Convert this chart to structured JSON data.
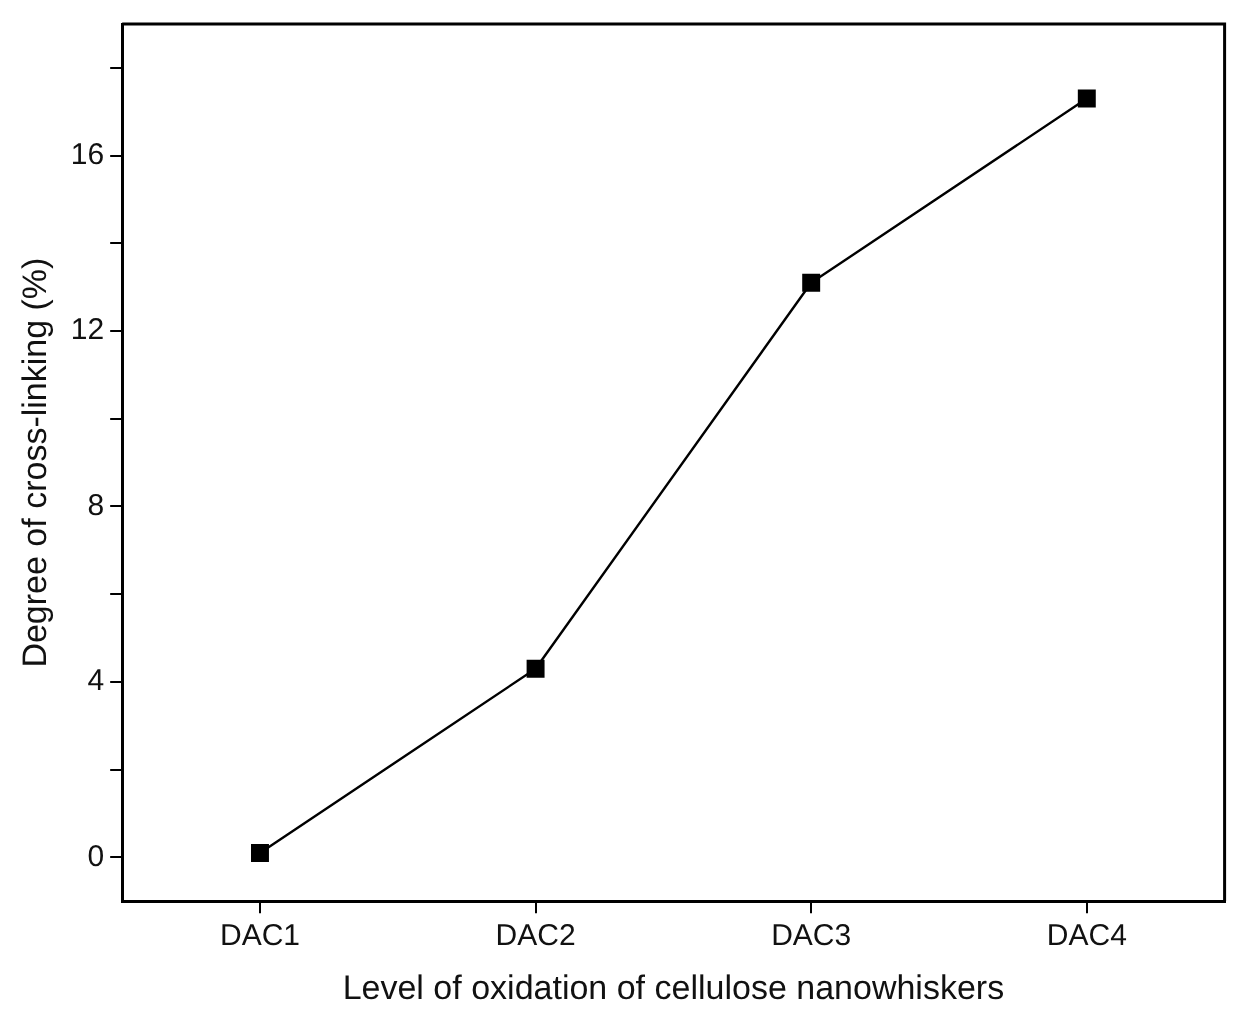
{
  "chart_data": {
    "type": "line",
    "xlabel": "Level of oxidation of cellulose nanowhiskers",
    "ylabel": "Degree of cross-linking (%)",
    "categories": [
      "DAC1",
      "DAC2",
      "DAC3",
      "DAC4"
    ],
    "series": [
      {
        "color": "#000000",
        "values": [
          0.1,
          4.3,
          13.1,
          17.3
        ]
      }
    ],
    "ylim": [
      -1,
      19
    ],
    "yticks": [
      0,
      {
        "value": 2,
        "label": null
      },
      4,
      {
        "value": 6,
        "label": null
      },
      8,
      {
        "value": 10,
        "label": null
      },
      12,
      {
        "value": 14,
        "label": null
      },
      16,
      {
        "value": 18,
        "label": null
      }
    ],
    "grid": false,
    "legend": false,
    "marker": "square",
    "line_style": "solid"
  }
}
